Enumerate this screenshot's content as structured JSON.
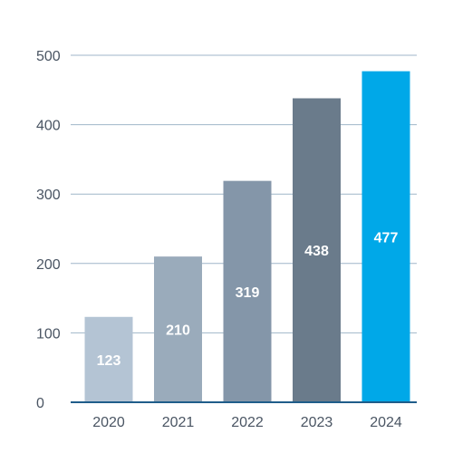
{
  "chart_data": {
    "type": "bar",
    "title": "",
    "xlabel": "",
    "ylabel": "",
    "categories": [
      "2020",
      "2021",
      "2022",
      "2023",
      "2024"
    ],
    "values": [
      123,
      210,
      319,
      438,
      477
    ],
    "data_labels": [
      "123",
      "210",
      "319",
      "438",
      "477"
    ],
    "ylim": [
      0,
      500
    ],
    "yticks": [
      0,
      100,
      200,
      300,
      400,
      500
    ],
    "ytick_labels": [
      "0",
      "100",
      "200",
      "300",
      "400",
      "500"
    ],
    "grid": true,
    "legend": "none",
    "bar_colors": [
      "#b4c4d4",
      "#9aabbb",
      "#8496a9",
      "#6a7b8b",
      "#00a8e8"
    ],
    "axis_color": "#1f5d8a",
    "grid_color": "#9fb6c8"
  }
}
